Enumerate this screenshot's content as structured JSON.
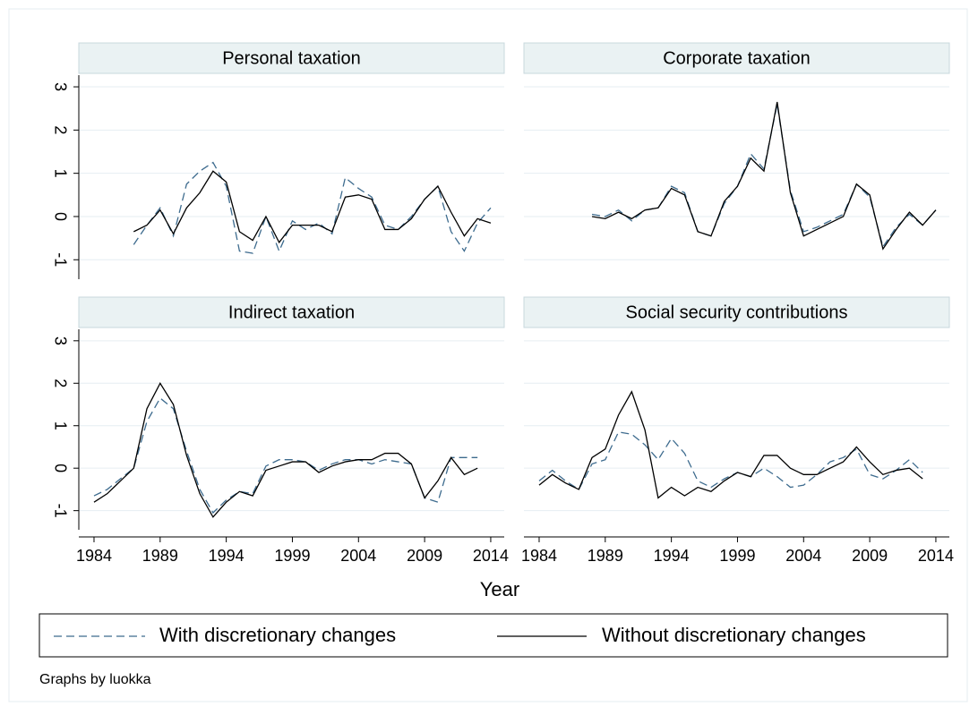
{
  "chart_data": [
    {
      "type": "line",
      "title": "Personal taxation",
      "x": [
        1984,
        1985,
        1986,
        1987,
        1988,
        1989,
        1990,
        1991,
        1992,
        1993,
        1994,
        1995,
        1996,
        1997,
        1998,
        1999,
        2000,
        2001,
        2002,
        2003,
        2004,
        2005,
        2006,
        2007,
        2008,
        2009,
        2010,
        2011,
        2012,
        2013,
        2014
      ],
      "series": [
        {
          "values": [
            null,
            null,
            null,
            -0.65,
            -0.2,
            0.2,
            -0.45,
            0.75,
            1.05,
            1.25,
            0.7,
            -0.8,
            -0.85,
            0.0,
            -0.8,
            -0.1,
            -0.3,
            -0.15,
            -0.4,
            0.9,
            0.65,
            0.45,
            -0.2,
            -0.3,
            0.0,
            0.4,
            0.7,
            -0.35,
            -0.8,
            -0.15,
            0.2
          ]
        },
        {
          "values": [
            null,
            null,
            null,
            -0.35,
            -0.2,
            0.15,
            -0.4,
            0.2,
            0.55,
            1.05,
            0.8,
            -0.35,
            -0.55,
            0.0,
            -0.6,
            -0.2,
            -0.2,
            -0.2,
            -0.35,
            0.45,
            0.5,
            0.4,
            -0.3,
            -0.3,
            -0.05,
            0.4,
            0.7,
            0.1,
            -0.45,
            -0.05,
            -0.15
          ]
        }
      ],
      "xlim": [
        1982.85,
        2015.02
      ],
      "ylim": [
        -1.45,
        3.27
      ],
      "yticks": [
        -1,
        0,
        1,
        2,
        3
      ],
      "grid": true
    },
    {
      "type": "line",
      "title": "Corporate taxation",
      "x": [
        1984,
        1985,
        1986,
        1987,
        1988,
        1989,
        1990,
        1991,
        1992,
        1993,
        1994,
        1995,
        1996,
        1997,
        1998,
        1999,
        2000,
        2001,
        2002,
        2003,
        2004,
        2005,
        2006,
        2007,
        2008,
        2009,
        2010,
        2011,
        2012,
        2013,
        2014
      ],
      "series": [
        {
          "values": [
            null,
            null,
            null,
            null,
            0.05,
            0.0,
            0.15,
            -0.1,
            0.15,
            0.2,
            0.7,
            0.55,
            -0.35,
            -0.45,
            0.3,
            0.7,
            1.45,
            1.1,
            2.6,
            0.6,
            -0.35,
            -0.25,
            -0.1,
            0.05,
            0.75,
            0.45,
            -0.7,
            -0.25,
            0.05,
            -0.2,
            0.15
          ]
        },
        {
          "values": [
            null,
            null,
            null,
            null,
            0.0,
            -0.05,
            0.1,
            -0.05,
            0.15,
            0.2,
            0.65,
            0.5,
            -0.35,
            -0.45,
            0.35,
            0.7,
            1.35,
            1.05,
            2.65,
            0.55,
            -0.45,
            -0.3,
            -0.15,
            0.0,
            0.75,
            0.5,
            -0.75,
            -0.3,
            0.1,
            -0.2,
            0.15
          ]
        }
      ],
      "xlim": [
        1982.85,
        2015.02
      ],
      "ylim": [
        -1.45,
        3.27
      ],
      "yticks": [
        -1,
        0,
        1,
        2,
        3
      ],
      "grid": true
    },
    {
      "type": "line",
      "title": "Indirect taxation",
      "x": [
        1984,
        1985,
        1986,
        1987,
        1988,
        1989,
        1990,
        1991,
        1992,
        1993,
        1994,
        1995,
        1996,
        1997,
        1998,
        1999,
        2000,
        2001,
        2002,
        2003,
        2004,
        2005,
        2006,
        2007,
        2008,
        2009,
        2010,
        2011,
        2012,
        2013,
        2014
      ],
      "series": [
        {
          "values": [
            -0.65,
            -0.5,
            -0.25,
            0.0,
            1.1,
            1.65,
            1.4,
            0.4,
            -0.5,
            -1.05,
            -0.75,
            -0.55,
            -0.6,
            0.05,
            0.2,
            0.2,
            0.15,
            -0.05,
            0.1,
            0.2,
            0.2,
            0.1,
            0.2,
            0.15,
            0.1,
            -0.7,
            -0.8,
            0.25,
            0.25,
            0.25,
            null
          ]
        },
        {
          "values": [
            -0.8,
            -0.6,
            -0.3,
            0.0,
            1.4,
            2.0,
            1.5,
            0.3,
            -0.6,
            -1.15,
            -0.8,
            -0.55,
            -0.65,
            -0.05,
            0.05,
            0.15,
            0.15,
            -0.1,
            0.05,
            0.15,
            0.2,
            0.2,
            0.35,
            0.35,
            0.1,
            -0.7,
            -0.3,
            0.25,
            -0.15,
            0.0,
            null
          ]
        }
      ],
      "xlim": [
        1982.85,
        2015.02
      ],
      "ylim": [
        -1.45,
        3.27
      ],
      "yticks": [
        -1,
        0,
        1,
        2,
        3
      ],
      "xticks": [
        1984,
        1989,
        1994,
        1999,
        2004,
        2009,
        2014
      ],
      "grid": true
    },
    {
      "type": "line",
      "title": "Social security contributions",
      "x": [
        1984,
        1985,
        1986,
        1987,
        1988,
        1989,
        1990,
        1991,
        1992,
        1993,
        1994,
        1995,
        1996,
        1997,
        1998,
        1999,
        2000,
        2001,
        2002,
        2003,
        2004,
        2005,
        2006,
        2007,
        2008,
        2009,
        2010,
        2011,
        2012,
        2013,
        2014
      ],
      "series": [
        {
          "values": [
            -0.3,
            -0.05,
            -0.3,
            -0.5,
            0.1,
            0.2,
            0.85,
            0.8,
            0.55,
            0.2,
            0.7,
            0.35,
            -0.3,
            -0.45,
            -0.25,
            -0.1,
            -0.2,
            0.0,
            -0.2,
            -0.45,
            -0.4,
            -0.15,
            0.15,
            0.25,
            0.45,
            -0.15,
            -0.25,
            -0.05,
            0.2,
            -0.1,
            null
          ]
        },
        {
          "values": [
            -0.4,
            -0.15,
            -0.35,
            -0.5,
            0.25,
            0.45,
            1.25,
            1.8,
            0.9,
            -0.7,
            -0.45,
            -0.65,
            -0.45,
            -0.55,
            -0.3,
            -0.1,
            -0.2,
            0.3,
            0.3,
            0.0,
            -0.15,
            -0.15,
            0.0,
            0.15,
            0.5,
            0.15,
            -0.15,
            -0.05,
            0.0,
            -0.25,
            null
          ]
        }
      ],
      "xlim": [
        1982.85,
        2015.02
      ],
      "ylim": [
        -1.45,
        3.27
      ],
      "yticks": [
        -1,
        0,
        1,
        2,
        3
      ],
      "xticks": [
        1984,
        1989,
        1994,
        1999,
        2004,
        2009,
        2014
      ],
      "grid": true
    }
  ],
  "legend": [
    {
      "name": "With discretionary changes",
      "color": "#3d6b8e",
      "dash": true
    },
    {
      "name": "Without discretionary changes",
      "color": "#000000",
      "dash": false
    }
  ],
  "xlabel": "Year",
  "note": "Graphs by luokka"
}
